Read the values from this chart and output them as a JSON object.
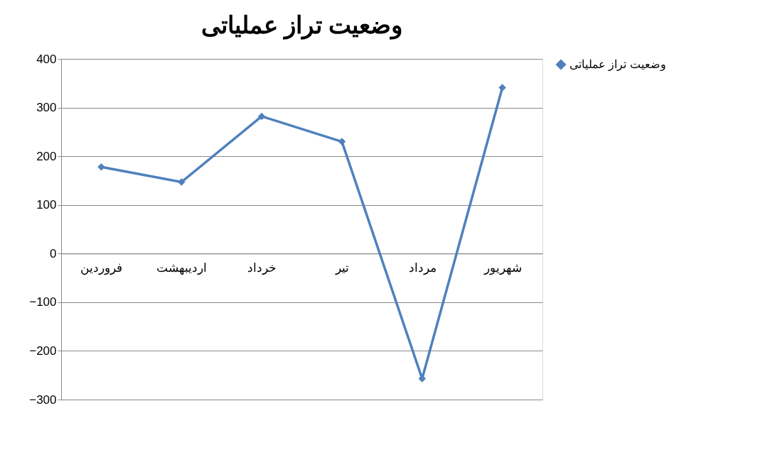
{
  "chart_data": {
    "type": "line",
    "title": "وضعیت تراز عملیاتی",
    "categories": [
      "فروردین",
      "اردیبهشت",
      "خرداد",
      "تیر",
      "مرداد",
      "شهریور"
    ],
    "series": [
      {
        "name": "وضعیت تراز عملیاتی",
        "color": "#4f81bd",
        "values": [
          178,
          147,
          282,
          230,
          -257,
          341
        ]
      }
    ],
    "ylim": [
      -300,
      400
    ],
    "yticks": [
      -300,
      -200,
      -100,
      0,
      100,
      200,
      300,
      400
    ],
    "grid": "y",
    "legend": "right",
    "marker": "diamond",
    "line_style": "solid"
  }
}
